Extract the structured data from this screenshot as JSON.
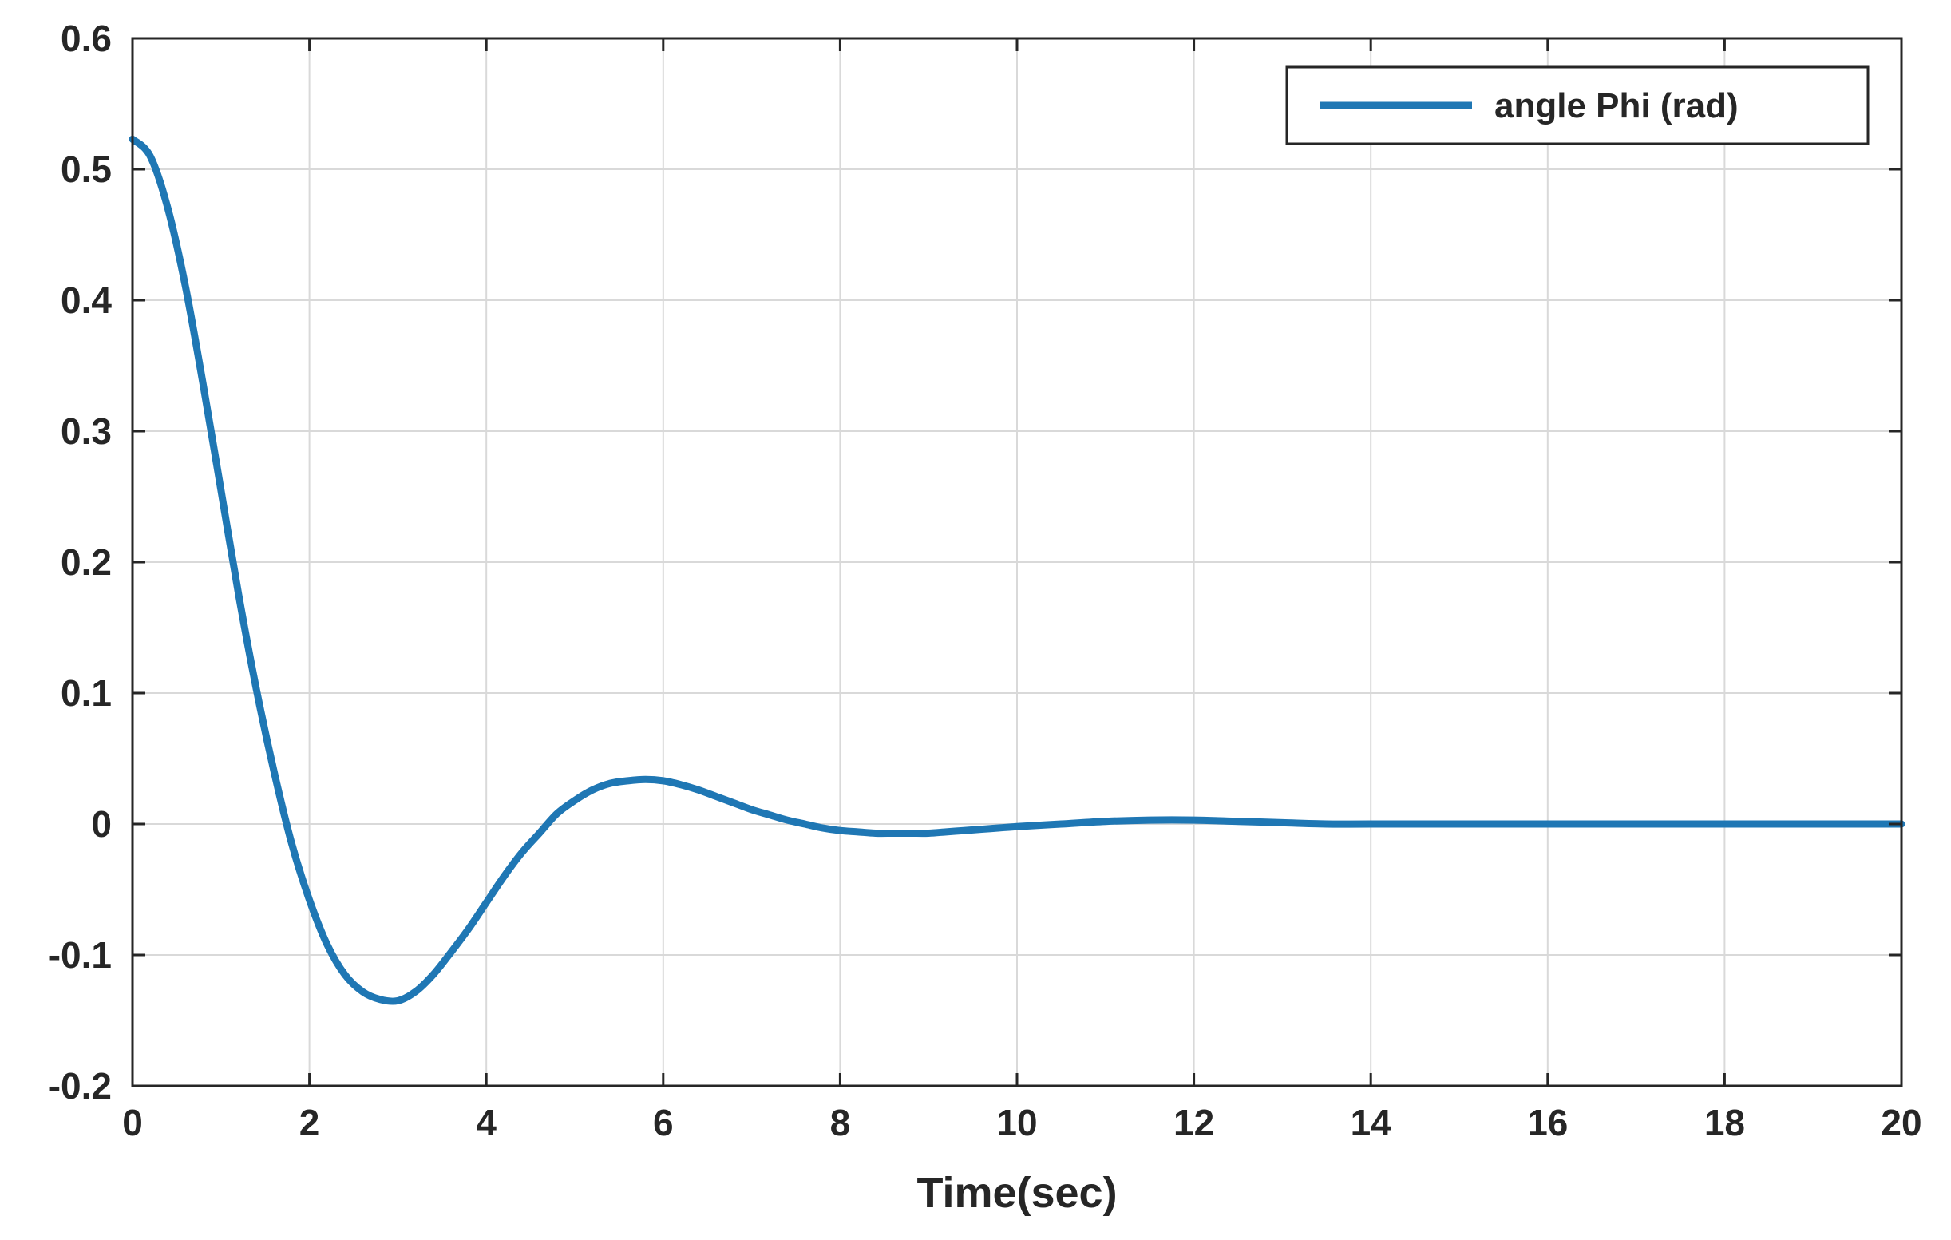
{
  "chart_data": {
    "type": "line",
    "title": "",
    "xlabel": "Time(sec)",
    "ylabel": "",
    "xlim": [
      0,
      20
    ],
    "ylim": [
      -0.2,
      0.6
    ],
    "xticks": [
      0,
      2,
      4,
      6,
      8,
      10,
      12,
      14,
      16,
      18,
      20
    ],
    "yticks": [
      -0.2,
      -0.1,
      0,
      0.1,
      0.2,
      0.3,
      0.4,
      0.5,
      0.6
    ],
    "xtick_labels": [
      "0",
      "2",
      "4",
      "6",
      "8",
      "10",
      "12",
      "14",
      "16",
      "18",
      "20"
    ],
    "ytick_labels": [
      "-0.2",
      "-0.1",
      "0",
      "0.1",
      "0.2",
      "0.3",
      "0.4",
      "0.5",
      "0.6"
    ],
    "grid": true,
    "legend_position": "top-right",
    "series": [
      {
        "name": "angle Phi (rad)",
        "color": "#1f77b4",
        "x": [
          0,
          0.2,
          0.4,
          0.6,
          0.8,
          1.0,
          1.2,
          1.4,
          1.6,
          1.8,
          2.0,
          2.2,
          2.4,
          2.6,
          2.8,
          3.0,
          3.2,
          3.4,
          3.6,
          3.8,
          4.0,
          4.2,
          4.4,
          4.6,
          4.8,
          5.0,
          5.2,
          5.4,
          5.6,
          5.8,
          6.0,
          6.2,
          6.4,
          6.6,
          6.8,
          7.0,
          7.2,
          7.4,
          7.6,
          7.8,
          8.0,
          8.2,
          8.4,
          8.6,
          8.8,
          9.0,
          9.2,
          9.4,
          9.6,
          9.8,
          10.0,
          10.5,
          11.0,
          11.5,
          12.0,
          12.5,
          13.0,
          13.5,
          14.0,
          15.0,
          16.0,
          17.0,
          18.0,
          19.0,
          20.0
        ],
        "values": [
          0.523,
          0.51,
          0.47,
          0.41,
          0.335,
          0.255,
          0.175,
          0.103,
          0.04,
          -0.015,
          -0.058,
          -0.092,
          -0.115,
          -0.128,
          -0.134,
          -0.135,
          -0.128,
          -0.115,
          -0.098,
          -0.08,
          -0.06,
          -0.04,
          -0.022,
          -0.007,
          0.008,
          0.018,
          0.026,
          0.031,
          0.033,
          0.034,
          0.033,
          0.03,
          0.026,
          0.021,
          0.016,
          0.011,
          0.007,
          0.003,
          0.0,
          -0.003,
          -0.005,
          -0.006,
          -0.007,
          -0.007,
          -0.007,
          -0.007,
          -0.006,
          -0.005,
          -0.004,
          -0.003,
          -0.002,
          0.0,
          0.002,
          0.003,
          0.003,
          0.002,
          0.001,
          0.0,
          0.0,
          0.0,
          0.0,
          0.0,
          0.0,
          0.0,
          0.0
        ]
      }
    ]
  }
}
